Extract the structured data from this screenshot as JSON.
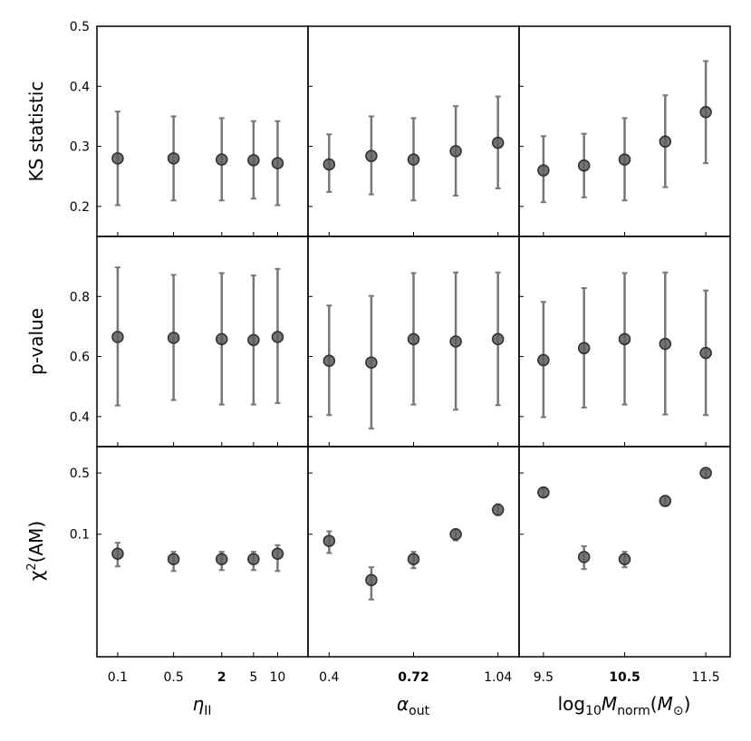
{
  "colors": {
    "marker": "#5c5c5c",
    "errorbar": "#777777",
    "frame": "#000000"
  },
  "chart_data": {
    "type": "scatter",
    "grid": false,
    "rows": [
      {
        "label": "KS statistic",
        "scale": "linear",
        "ylim": [
          0.15,
          0.5
        ],
        "yticks": [
          0.2,
          0.3,
          0.4,
          0.5
        ],
        "yticklabels": [
          "0.2",
          "0.3",
          "0.4",
          "0.5"
        ]
      },
      {
        "label": "p-value",
        "scale": "linear",
        "ylim": [
          0.3,
          1.0
        ],
        "yticks": [
          0.4,
          0.6,
          0.8
        ],
        "yticklabels": [
          "0.4",
          "0.6",
          "0.8"
        ]
      },
      {
        "label": "χ2(AM)",
        "scale": "log",
        "ylim": [
          0.004,
          1.0
        ],
        "yticks": [
          0.1,
          0.5
        ],
        "yticklabels": [
          "0.1",
          "0.5"
        ]
      }
    ],
    "columns": [
      {
        "xlabel": "ηII",
        "scale": "log",
        "xlim": [
          0.055,
          24
        ],
        "x": [
          0.1,
          0.5,
          2,
          5,
          10
        ],
        "xticklabels": [
          "0.1",
          "0.5",
          "2",
          "5",
          "10"
        ],
        "bold_tick": "2",
        "panels": [
          {
            "y": [
              0.28,
              0.28,
              0.278,
              0.277,
              0.272
            ],
            "lo": [
              0.202,
              0.21,
              0.21,
              0.213,
              0.202
            ],
            "hi": [
              0.358,
              0.35,
              0.347,
              0.342,
              0.342
            ]
          },
          {
            "y": [
              0.665,
              0.662,
              0.658,
              0.655,
              0.665
            ],
            "lo": [
              0.437,
              0.455,
              0.44,
              0.44,
              0.445
            ],
            "hi": [
              0.897,
              0.872,
              0.878,
              0.87,
              0.892
            ]
          },
          {
            "y": [
              0.06,
              0.052,
              0.052,
              0.052,
              0.06
            ],
            "lo": [
              0.043,
              0.038,
              0.039,
              0.039,
              0.038
            ],
            "hi": [
              0.08,
              0.063,
              0.063,
              0.063,
              0.075
            ]
          }
        ]
      },
      {
        "xlabel": "αout",
        "scale": "linear",
        "xlim": [
          0.32,
          1.12
        ],
        "x": [
          0.4,
          0.56,
          0.72,
          0.88,
          1.04
        ],
        "xticklabels": [
          "0.4",
          "0.72",
          "1.04"
        ],
        "xticks": [
          0.4,
          0.72,
          1.04
        ],
        "bold_tick": "0.72",
        "panels": [
          {
            "y": [
              0.27,
              0.284,
              0.278,
              0.292,
              0.306
            ],
            "lo": [
              0.224,
              0.22,
              0.21,
              0.218,
              0.23
            ],
            "hi": [
              0.32,
              0.35,
              0.347,
              0.367,
              0.383
            ]
          },
          {
            "y": [
              0.586,
              0.58,
              0.658,
              0.65,
              0.658
            ],
            "lo": [
              0.405,
              0.36,
              0.44,
              0.423,
              0.438
            ],
            "hi": [
              0.77,
              0.802,
              0.878,
              0.88,
              0.88
            ]
          },
          {
            "y": [
              0.084,
              0.03,
              0.052,
              0.1,
              0.19
            ],
            "lo": [
              0.061,
              0.018,
              0.041,
              0.085,
              0.165
            ],
            "hi": [
              0.108,
              0.042,
              0.063,
              0.113,
              0.22
            ]
          }
        ]
      },
      {
        "xlabel": "log10Mnorm(M⊙)",
        "scale": "linear",
        "xlim": [
          9.2,
          11.8
        ],
        "x": [
          9.5,
          10,
          10.5,
          11,
          11.5
        ],
        "xticklabels": [
          "9.5",
          "10.5",
          "11.5"
        ],
        "xticks": [
          9.5,
          10.5,
          11.5
        ],
        "bold_tick": "10.5",
        "panels": [
          {
            "y": [
              0.26,
              0.268,
              0.278,
              0.308,
              0.357
            ],
            "lo": [
              0.207,
              0.215,
              0.21,
              0.232,
              0.272
            ],
            "hi": [
              0.317,
              0.321,
              0.347,
              0.385,
              0.442
            ]
          },
          {
            "y": [
              0.588,
              0.628,
              0.658,
              0.642,
              0.612
            ],
            "lo": [
              0.398,
              0.43,
              0.44,
              0.407,
              0.405
            ],
            "hi": [
              0.782,
              0.828,
              0.878,
              0.88,
              0.82
            ]
          },
          {
            "y": [
              0.3,
              0.055,
              0.052,
              0.24,
              0.5
            ],
            "lo": [
              0.27,
              0.04,
              0.042,
              0.21,
              0.445
            ],
            "hi": [
              0.33,
              0.073,
              0.063,
              0.27,
              0.54
            ]
          }
        ]
      }
    ]
  }
}
